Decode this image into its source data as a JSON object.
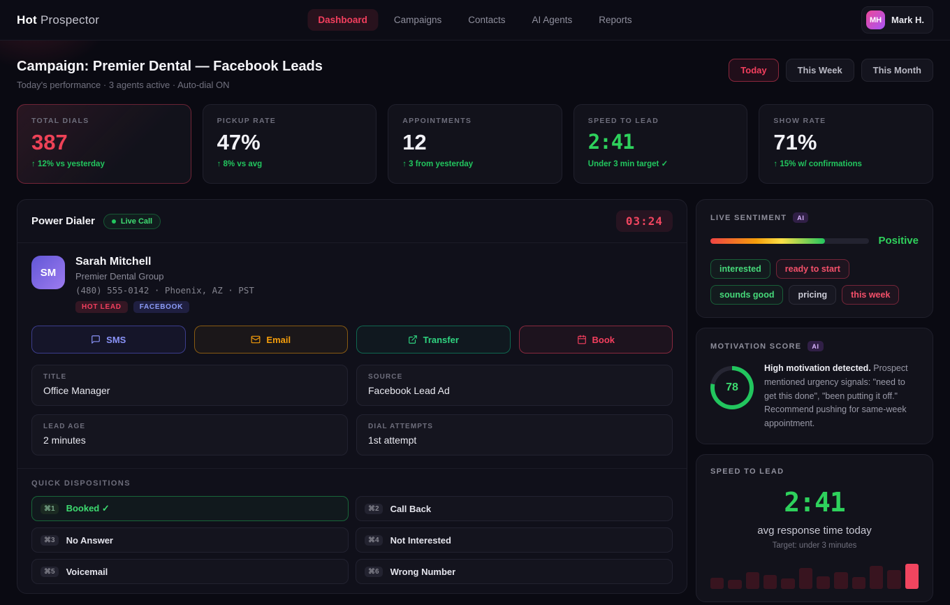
{
  "colors": {
    "accent": "#f43f5e",
    "green": "#22c55e",
    "indigo": "#818cf8",
    "amber": "#f59e0b"
  },
  "brand": {
    "name_bold": "Hot",
    "name_light": "Prospector"
  },
  "nav": {
    "items": [
      {
        "label": "Dashboard",
        "active": true
      },
      {
        "label": "Campaigns",
        "active": false
      },
      {
        "label": "Contacts",
        "active": false
      },
      {
        "label": "AI Agents",
        "active": false
      },
      {
        "label": "Reports",
        "active": false
      }
    ],
    "user": {
      "initials": "MH",
      "name": "Mark H."
    }
  },
  "header": {
    "title": "Campaign: Premier Dental — Facebook Leads",
    "subtitle": "Today's performance · 3 agents active · Auto-dial ON",
    "ranges": [
      {
        "label": "Today",
        "active": true
      },
      {
        "label": "This Week",
        "active": false
      },
      {
        "label": "This Month",
        "active": false
      }
    ]
  },
  "stats": [
    {
      "label": "TOTAL DIALS",
      "value": "387",
      "delta": "↑ 12% vs yesterday"
    },
    {
      "label": "PICKUP RATE",
      "value": "47%",
      "delta": "↑ 8% vs avg"
    },
    {
      "label": "APPOINTMENTS",
      "value": "12",
      "delta": "↑ 3 from yesterday"
    },
    {
      "label": "SPEED TO LEAD",
      "value": "2:41",
      "delta": "Under 3 min target ✓"
    },
    {
      "label": "SHOW RATE",
      "value": "71%",
      "delta": "↑ 15% w/ confirmations"
    }
  ],
  "dialer": {
    "title": "Power Dialer",
    "live_badge": "Live Call",
    "timer": "03:24",
    "contact": {
      "initials": "SM",
      "name": "Sarah Mitchell",
      "company": "Premier Dental Group",
      "phone_line": "(480) 555-0142 · Phoenix, AZ · PST",
      "tags": [
        {
          "label": "HOT LEAD"
        },
        {
          "label": "FACEBOOK"
        }
      ]
    },
    "actions": [
      {
        "label": "SMS",
        "icon": "sms-icon"
      },
      {
        "label": "Email",
        "icon": "email-icon"
      },
      {
        "label": "Transfer",
        "icon": "transfer-icon"
      },
      {
        "label": "Book",
        "icon": "book-icon"
      }
    ],
    "fields": [
      {
        "label": "TITLE",
        "value": "Office Manager"
      },
      {
        "label": "SOURCE",
        "value": "Facebook Lead Ad"
      },
      {
        "label": "LEAD AGE",
        "value": "2 minutes"
      },
      {
        "label": "DIAL ATTEMPTS",
        "value": "1st attempt"
      }
    ],
    "dispositions_title": "QUICK DISPOSITIONS",
    "dispositions": [
      {
        "key": "⌘1",
        "label": "Booked ✓",
        "active": true
      },
      {
        "key": "⌘2",
        "label": "Call Back",
        "active": false
      },
      {
        "key": "⌘3",
        "label": "No Answer",
        "active": false
      },
      {
        "key": "⌘4",
        "label": "Not Interested",
        "active": false
      },
      {
        "key": "⌘5",
        "label": "Voicemail",
        "active": false
      },
      {
        "key": "⌘6",
        "label": "Wrong Number",
        "active": false
      }
    ]
  },
  "sentiment": {
    "title": "LIVE SENTIMENT",
    "ai_badge": "AI",
    "fill_pct": 72,
    "level_label": "Positive",
    "tags": [
      {
        "label": "interested",
        "tone": "green"
      },
      {
        "label": "ready to start",
        "tone": "red"
      },
      {
        "label": "sounds good",
        "tone": "green"
      },
      {
        "label": "pricing",
        "tone": "gray"
      },
      {
        "label": "this week",
        "tone": "red"
      }
    ]
  },
  "motivation": {
    "title": "MOTIVATION SCORE",
    "ai_badge": "AI",
    "score": 78,
    "text_bold": "High motivation detected.",
    "text": " Prospect mentioned urgency signals: \"need to get this done\", \"been putting it off.\" Recommend pushing for same-week appointment."
  },
  "speed": {
    "title": "SPEED TO LEAD",
    "value": "2:41",
    "caption": "avg response time today",
    "target": "Target: under 3 minutes",
    "bars": [
      16,
      13,
      24,
      20,
      15,
      30,
      18,
      24,
      17,
      33,
      27,
      36
    ],
    "highlight_index": 11
  }
}
